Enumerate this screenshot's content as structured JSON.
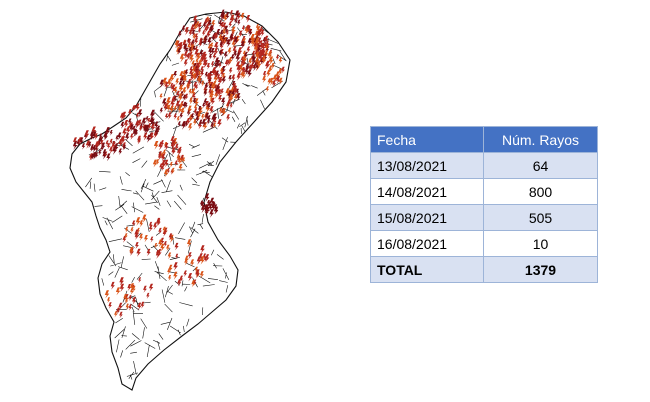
{
  "colors": {
    "header_bg": "#4472c4",
    "row_alt_bg": "#d9e1f2",
    "row_bg": "#ffffff",
    "border": "#9db4d8",
    "strike_dark": "#7a0c12",
    "strike_mid": "#b3261e",
    "strike_light": "#d9541a",
    "map_outline": "#111111"
  },
  "map": {
    "icon": "lightning-strike-icon",
    "region_outline": "municipal-boundaries"
  },
  "table": {
    "headers": {
      "date": "Fecha",
      "count": "Núm. Rayos"
    },
    "rows": [
      {
        "date": "13/08/2021",
        "count": "64"
      },
      {
        "date": "14/08/2021",
        "count": "800"
      },
      {
        "date": "15/08/2021",
        "count": "505"
      },
      {
        "date": "16/08/2021",
        "count": "10"
      }
    ],
    "total": {
      "label": "TOTAL",
      "value": "1379"
    }
  }
}
